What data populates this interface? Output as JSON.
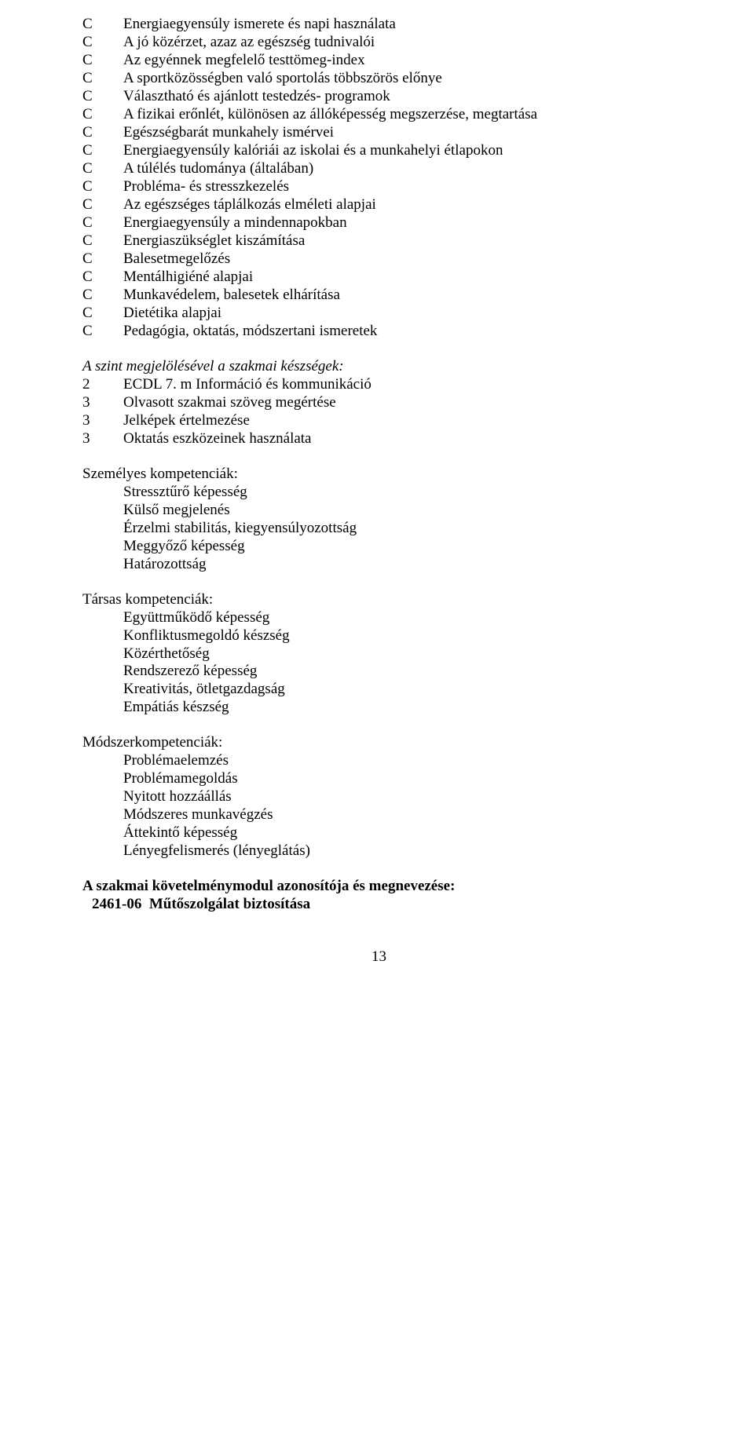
{
  "listC": [
    "Energiaegyensúly ismerete és napi használata",
    "A jó közérzet, azaz az egészség tudnivalói",
    "Az egyénnek megfelelő testtömeg-index",
    "A sportközösségben való sportolás többszörös előnye",
    "Választható és ajánlott testedzés- programok",
    "A fizikai erőnlét, különösen az állóképesség megszerzése, megtartása",
    "Egészségbarát munkahely ismérvei",
    "Energiaegyensúly kalóriái az iskolai és a munkahelyi étlapokon",
    "A túlélés tudománya (általában)",
    "Probléma- és stresszkezelés",
    "Az egészséges táplálkozás elméleti alapjai",
    "Energiaegyensúly a mindennapokban",
    "Energiaszükséglet kiszámítása",
    "Balesetmegelőzés",
    "Mentálhigiéné alapjai",
    "Munkavédelem, balesetek elhárítása",
    "Dietétika alapjai",
    "Pedagógia, oktatás, módszertani ismeretek"
  ],
  "markerC": "C",
  "skillsTitle": "A szint megjelölésével a szakmai készségek:",
  "skills": [
    {
      "n": "2",
      "t": "ECDL 7. m Információ és kommunikáció"
    },
    {
      "n": "3",
      "t": "Olvasott szakmai szöveg megértése"
    },
    {
      "n": "3",
      "t": "Jelképek értelmezése"
    },
    {
      "n": "3",
      "t": "Oktatás eszközeinek használata"
    }
  ],
  "personalTitle": "Személyes kompetenciák:",
  "personal": [
    "Stressztűrő képesség",
    "Külső megjelenés",
    "Érzelmi stabilitás, kiegyensúlyozottság",
    "Meggyőző képesség",
    "Határozottság"
  ],
  "socialTitle": "Társas kompetenciák:",
  "social": [
    "Együttműködő képesség",
    "Konfliktusmegoldó készség",
    "Közérthetőség",
    "Rendszerező képesség",
    "Kreativitás, ötletgazdagság",
    "Empátiás készség"
  ],
  "methodTitle": "Módszerkompetenciák:",
  "method": [
    "Problémaelemzés",
    "Problémamegoldás",
    "Nyitott hozzáállás",
    "Módszeres munkavégzés",
    "Áttekintő képesség",
    "Lényegfelismerés (lényeglátás)"
  ],
  "moduleLine1": "A szakmai követelménymodul azonosítója és megnevezése:",
  "moduleCode": "2461-06",
  "moduleName": "Műtőszolgálat biztosítása",
  "pageNumber": "13"
}
